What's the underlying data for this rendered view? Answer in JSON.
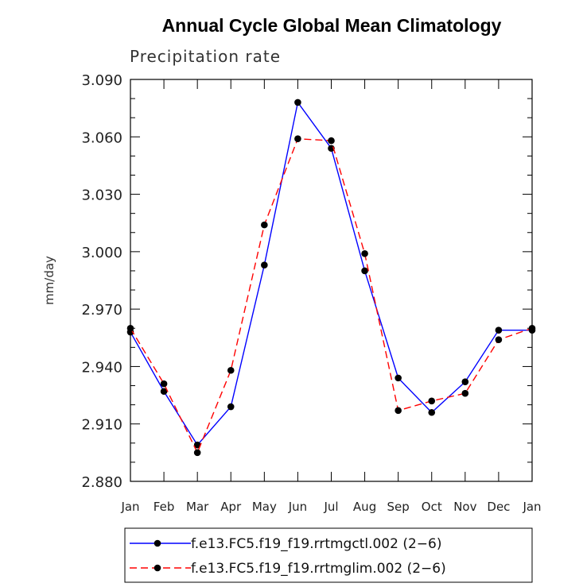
{
  "chart_data": {
    "type": "line",
    "title": "Annual Cycle Global Mean Climatology",
    "subtitle": "Precipitation rate",
    "xlabel": "",
    "ylabel": "mm/day",
    "categories": [
      "Jan",
      "Feb",
      "Mar",
      "Apr",
      "May",
      "Jun",
      "Jul",
      "Aug",
      "Sep",
      "Oct",
      "Nov",
      "Dec",
      "Jan"
    ],
    "ylim": [
      2.88,
      3.09
    ],
    "yticks": [
      "3.090",
      "3.060",
      "3.030",
      "3.000",
      "2.970",
      "2.940",
      "2.910",
      "2.880"
    ],
    "grid": false,
    "legend_position": "bottom",
    "series": [
      {
        "name": "f.e13.FC5.f19_f19.rrtmgctl.002 (2−6)",
        "color": "#0000ff",
        "dash": "solid",
        "values": [
          2.958,
          2.927,
          2.899,
          2.919,
          2.993,
          3.078,
          3.054,
          2.99,
          2.934,
          2.916,
          2.932,
          2.959,
          2.959
        ]
      },
      {
        "name": "f.e13.FC5.f19_f19.rrtmglim.002 (2−6)",
        "color": "#ff0000",
        "dash": "dashed",
        "values": [
          2.96,
          2.931,
          2.895,
          2.938,
          3.014,
          3.059,
          3.058,
          2.999,
          2.917,
          2.922,
          2.926,
          2.954,
          2.96
        ]
      }
    ]
  }
}
